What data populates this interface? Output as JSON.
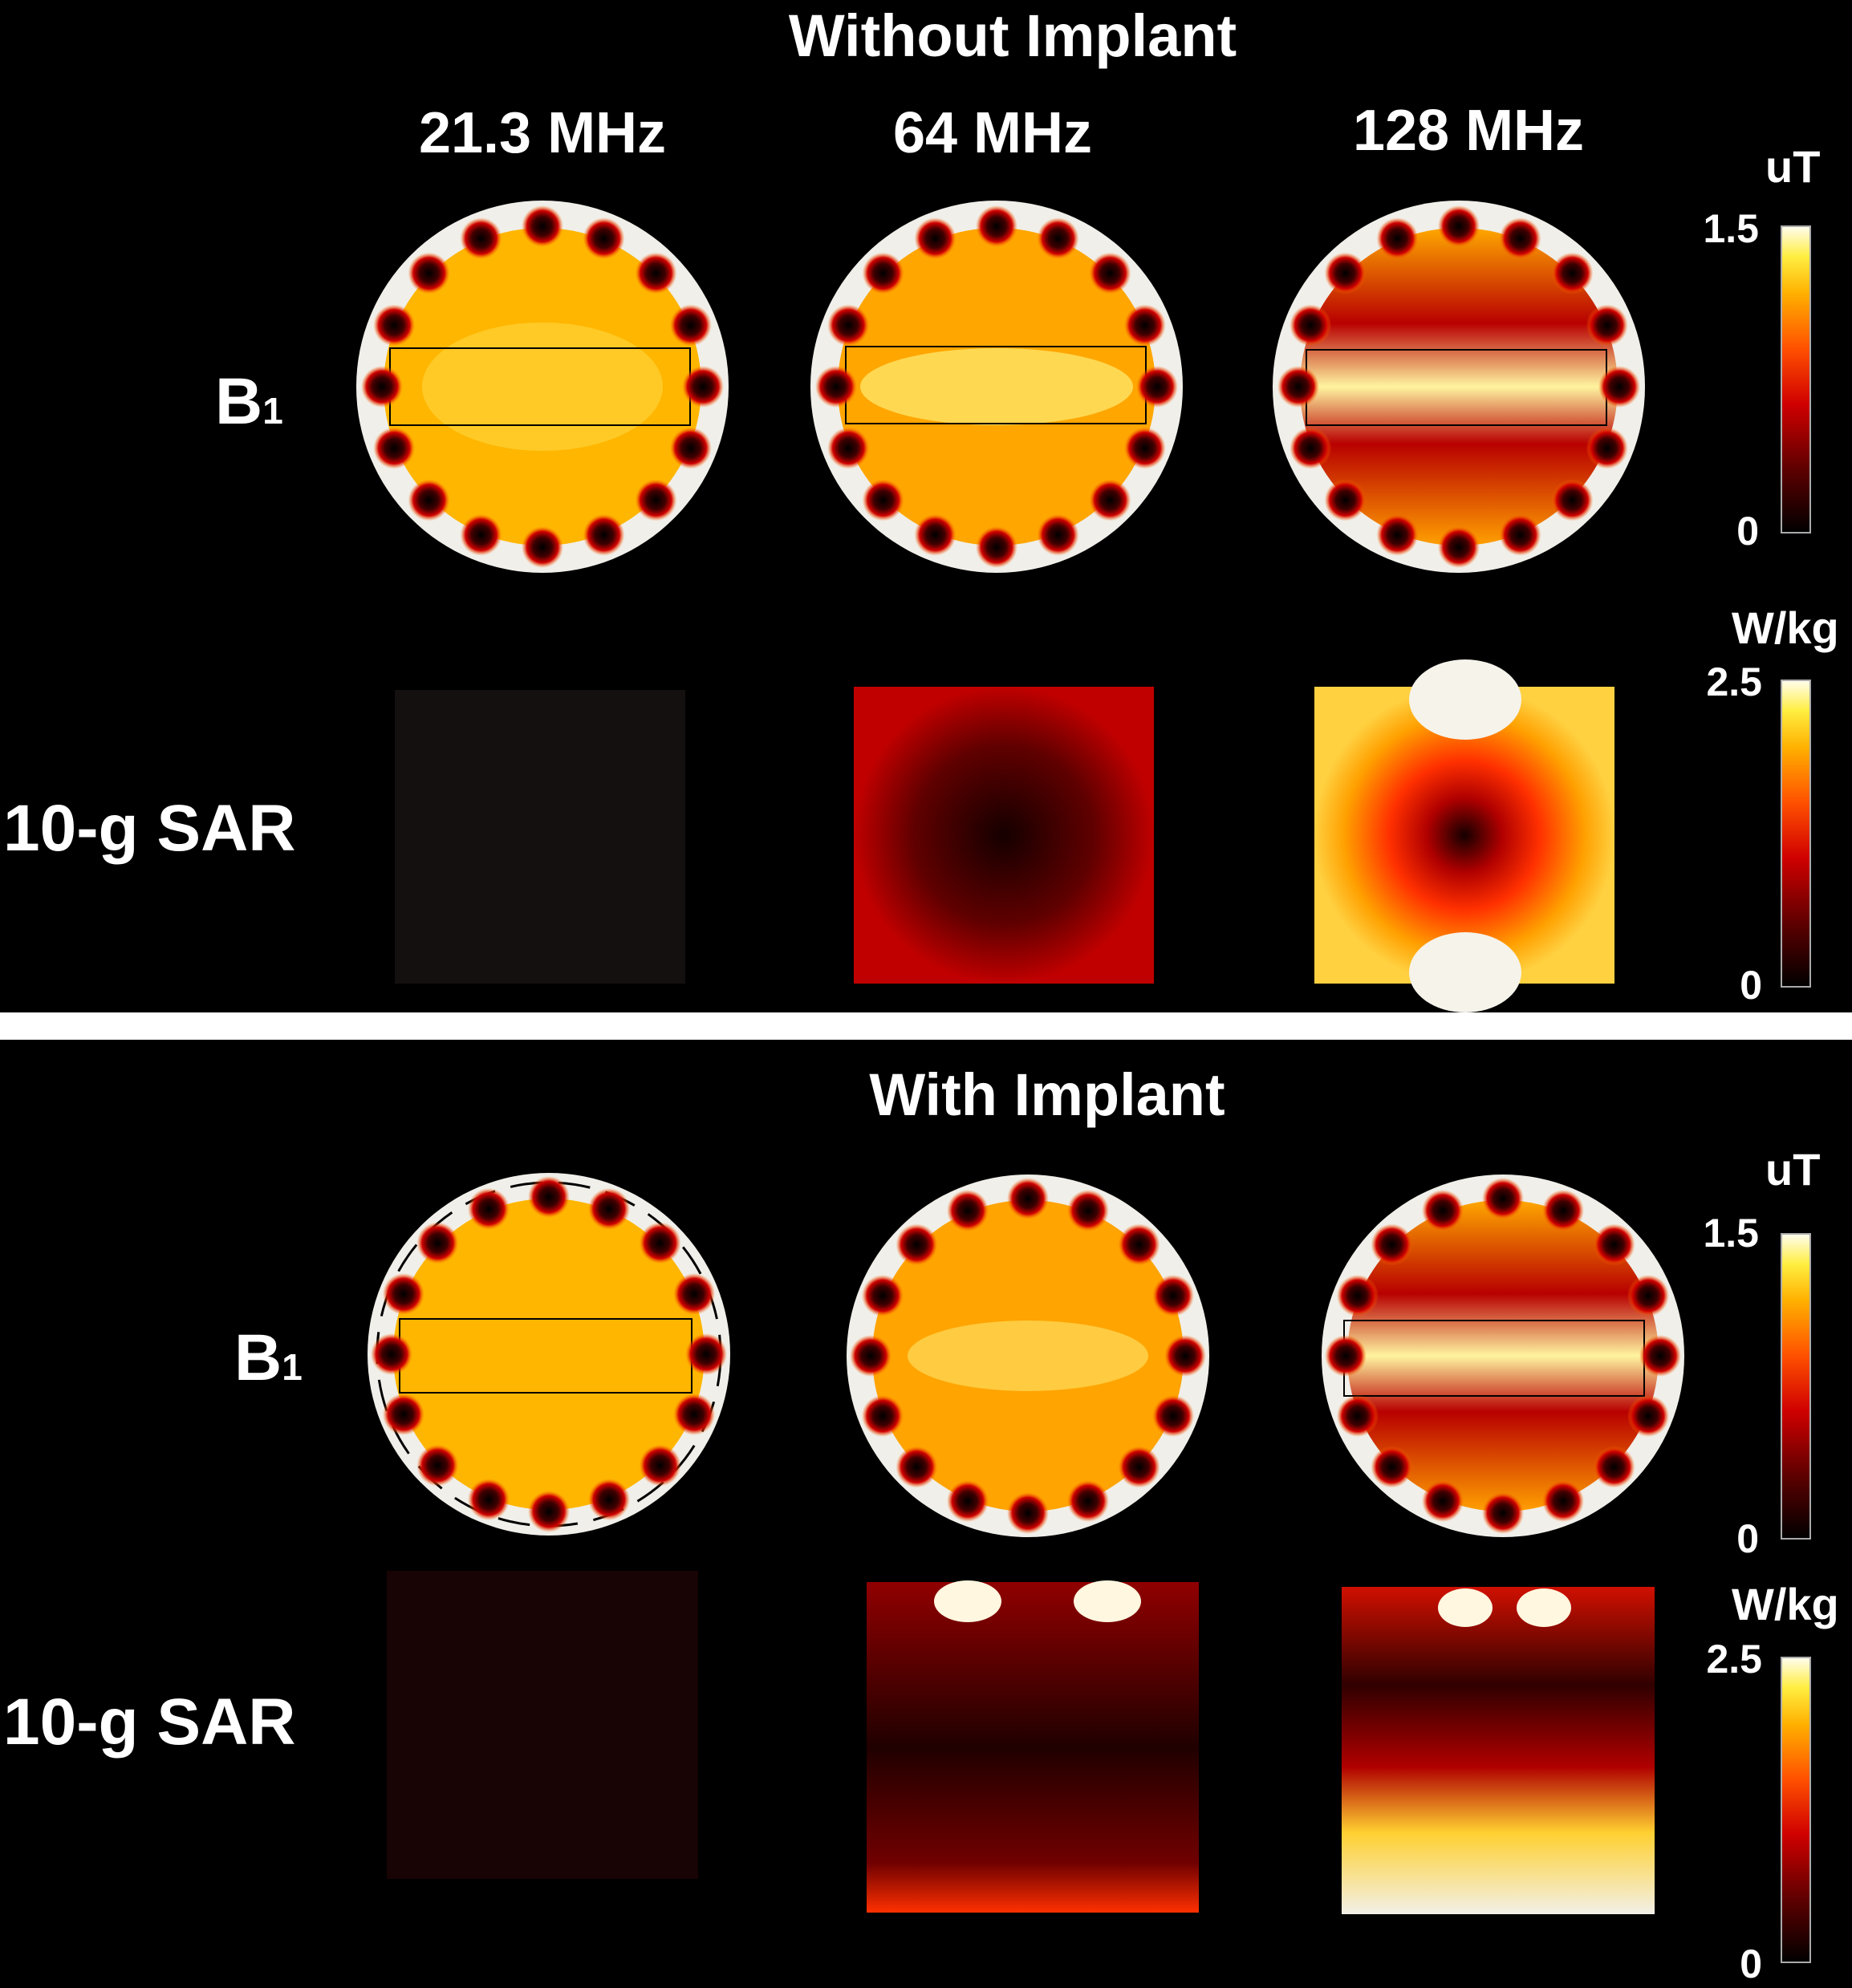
{
  "sections": [
    {
      "title": "Without Implant",
      "frequencies": [
        "21.3 MHz",
        "64 MHz",
        "128 MHz"
      ],
      "rows": [
        {
          "label_main": "B",
          "label_sub": "1"
        },
        {
          "label_main": "10-g SAR",
          "label_sub": ""
        }
      ],
      "b1_scale": {
        "unit": "uT",
        "max_label": "1.5",
        "min_label": "0"
      },
      "sar_scale": {
        "unit": "W/kg",
        "max_label": "2.5",
        "min_label": "0"
      }
    },
    {
      "title": "With Implant",
      "rows": [
        {
          "label_main": "B",
          "label_sub": "1"
        },
        {
          "label_main": "10-g SAR",
          "label_sub": ""
        }
      ],
      "b1_scale": {
        "unit": "uT",
        "max_label": "1.5",
        "min_label": "0"
      },
      "sar_scale": {
        "unit": "W/kg",
        "max_label": "2.5",
        "min_label": "0"
      }
    }
  ],
  "colormap": [
    "#000000",
    "#5a0000",
    "#c00000",
    "#ff3c00",
    "#ff9c00",
    "#ffe020",
    "#fffbe0"
  ]
}
